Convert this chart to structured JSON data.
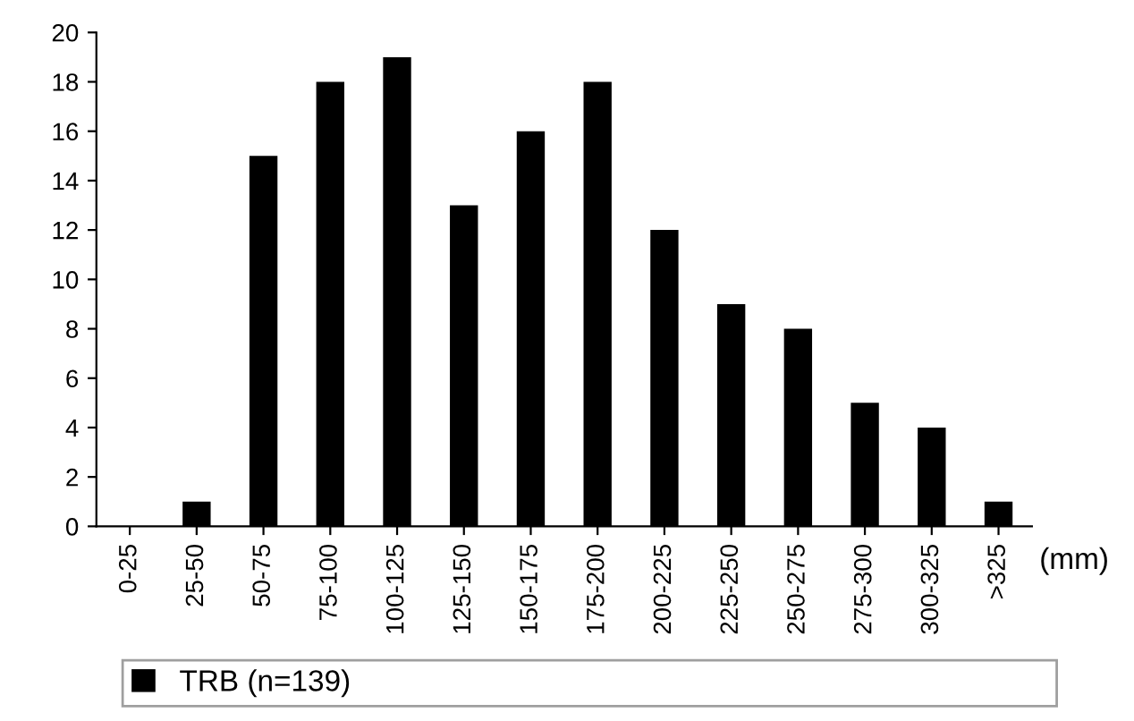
{
  "chart_data": {
    "type": "bar",
    "xlabel": "(mm)",
    "categories": [
      "0-25",
      "25-50",
      "50-75",
      "75-100",
      "100-125",
      "125-150",
      "150-175",
      "175-200",
      "200-225",
      "225-250",
      "250-275",
      "275-300",
      "300-325",
      ">325"
    ],
    "series": [
      {
        "name": "TRB (n=139)",
        "color": "#000000",
        "values": [
          0,
          1,
          15,
          18,
          19,
          13,
          16,
          18,
          12,
          9,
          8,
          5,
          4,
          1
        ]
      }
    ],
    "ylim": [
      0,
      20
    ],
    "yticks": [
      0,
      2,
      4,
      6,
      8,
      10,
      12,
      14,
      16,
      18,
      20
    ],
    "grid": false,
    "legend": "bottom"
  }
}
